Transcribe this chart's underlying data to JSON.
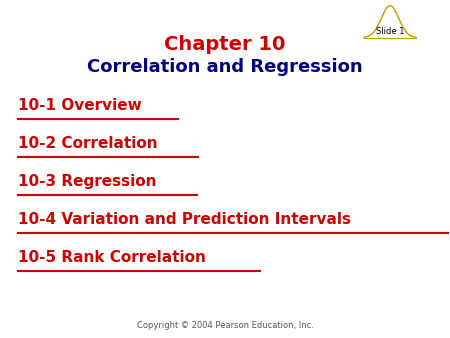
{
  "title_line1": "Chapter 10",
  "title_line2": "Correlation and Regression",
  "title_color": "#CC0000",
  "subtitle_color": "#000080",
  "menu_items": [
    "10-1 Overview",
    "10-2 Correlation",
    "10-3 Regression",
    "10-4 Variation and Prediction Intervals",
    "10-5 Rank Correlation"
  ],
  "menu_color": "#CC0000",
  "copyright": "Copyright © 2004 Pearson Education, Inc.",
  "copyright_color": "#555555",
  "background_color": "#ffffff",
  "slide_label": "Slide 1",
  "slide_label_color": "#000000",
  "bell_curve_color": "#CC9900",
  "bell_baseline_color": "#CC9900",
  "title_fontsize": 14,
  "subtitle_fontsize": 13,
  "menu_fontsize": 11,
  "copyright_fontsize": 6
}
